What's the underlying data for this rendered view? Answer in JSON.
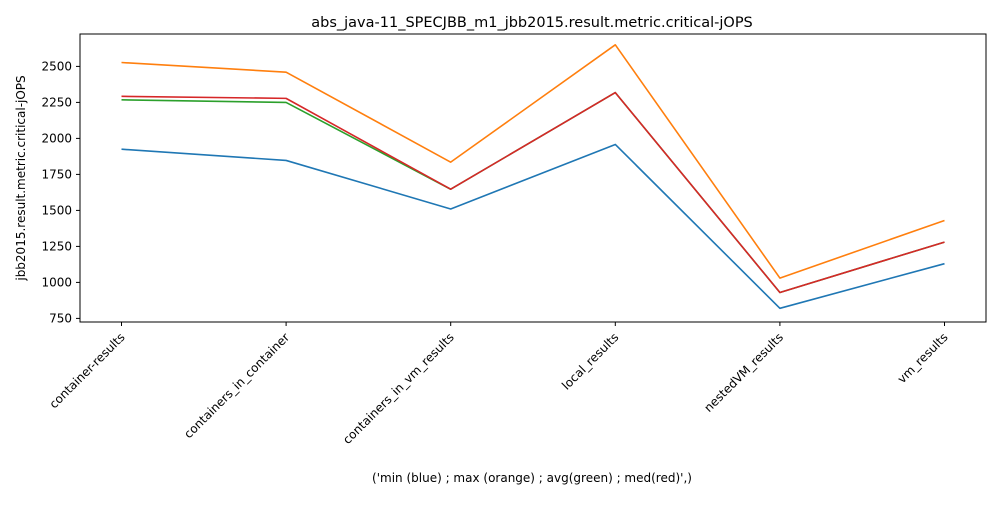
{
  "chart_data": {
    "type": "line",
    "title": "abs_java-11_SPECJBB_m1_jbb2015.result.metric.critical-jOPS",
    "xlabel": "('min (blue) ; max (orange) ; avg(green) ; med(red)',)",
    "ylabel": "jbb2015.result.metric.critical-jOPS",
    "categories": [
      "container-results",
      "containers_in_container",
      "containers_in_vm_results",
      "local_results",
      "nestedVM_results",
      "vm_results"
    ],
    "ylim": [
      725,
      2725
    ],
    "yticks": [
      750,
      1000,
      1250,
      1500,
      1750,
      2000,
      2250,
      2500
    ],
    "grid": false,
    "series": [
      {
        "color": "#1f77b4",
        "values": [
          1925,
          1847,
          1510,
          1958,
          820,
          1130
        ]
      },
      {
        "color": "#ff7f0e",
        "values": [
          2527,
          2460,
          1835,
          2650,
          1030,
          1430
        ]
      },
      {
        "color": "#2ca02c",
        "values": [
          2268,
          2250,
          1647,
          2318,
          930,
          1280
        ]
      },
      {
        "color": "#d62728",
        "values": [
          2292,
          2278,
          1647,
          2318,
          930,
          1280
        ]
      }
    ]
  }
}
